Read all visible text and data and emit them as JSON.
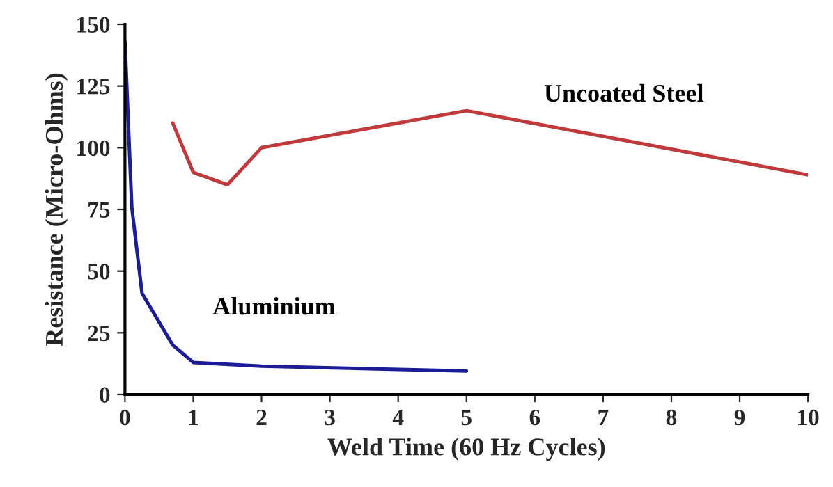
{
  "chart_data": {
    "type": "line",
    "xlabel": "Weld Time (60 Hz Cycles)",
    "ylabel": "Resistance (Micro-Ohms)",
    "series": [
      {
        "name": "Uncoated Steel",
        "color": "#c0393b",
        "x": [
          0.7,
          1,
          1.5,
          2,
          5,
          10
        ],
        "values": [
          110,
          90,
          85,
          100,
          115,
          89
        ]
      },
      {
        "name": "Aluminium",
        "color": "#1c1c96",
        "x": [
          0,
          0.1,
          0.25,
          0.7,
          1,
          2,
          5
        ],
        "values": [
          143,
          76,
          41,
          20,
          13,
          11.5,
          9.5
        ]
      }
    ],
    "xlim": [
      0,
      10
    ],
    "xticks": [
      0,
      1,
      2,
      3,
      4,
      5,
      6,
      7,
      8,
      9,
      10
    ],
    "ylim": [
      0,
      150
    ],
    "yticks": [
      0,
      25,
      50,
      75,
      100,
      125,
      150
    ],
    "grid": false,
    "legend": false,
    "marker": "none",
    "line_style": "solid"
  }
}
